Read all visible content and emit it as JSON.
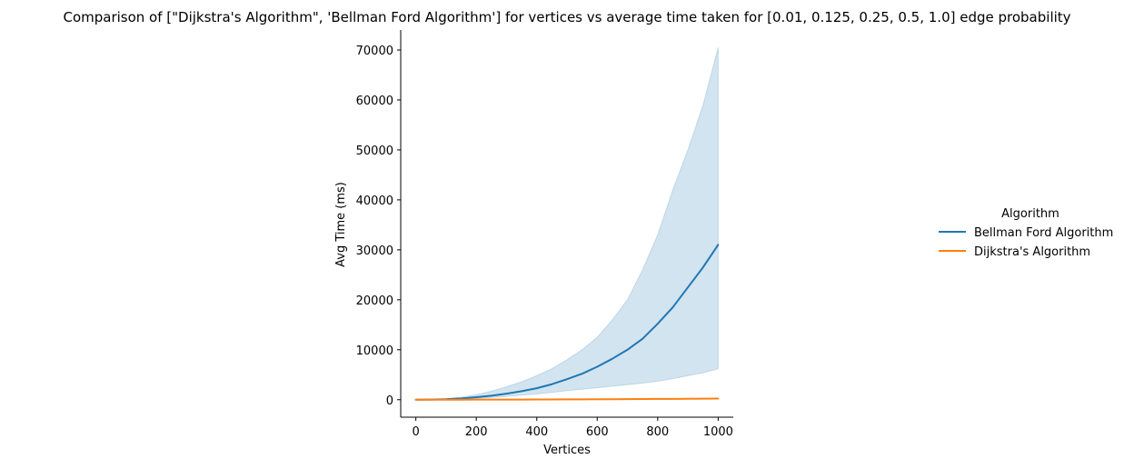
{
  "chart_data": {
    "type": "line",
    "title": "Comparison of [\"Dijkstra's Algorithm\", 'Bellman Ford Algorithm'] for vertices vs average time taken for [0.01, 0.125, 0.25, 0.5, 1.0] edge probability",
    "xlabel": "Vertices",
    "ylabel": "Avg Time (ms)",
    "xlim": [
      -50,
      1050
    ],
    "ylim": [
      -3500,
      74000
    ],
    "xticks": [
      0,
      200,
      400,
      600,
      800,
      1000
    ],
    "xtick_labels": [
      "0",
      "200",
      "400",
      "600",
      "800",
      "1000"
    ],
    "yticks": [
      0,
      10000,
      20000,
      30000,
      40000,
      50000,
      60000,
      70000
    ],
    "ytick_labels": [
      "0",
      "10000",
      "20000",
      "30000",
      "40000",
      "50000",
      "60000",
      "70000"
    ],
    "grid": false,
    "legend": {
      "title": "Algorithm",
      "placement": "right, outside plot",
      "entries": [
        "Bellman Ford Algorithm",
        "Dijkstra's Algorithm"
      ]
    },
    "series": [
      {
        "name": "Bellman Ford Algorithm",
        "color": "#1f77b4",
        "band_color": "#1f77b4",
        "x": [
          0,
          50,
          100,
          150,
          200,
          250,
          300,
          350,
          400,
          450,
          500,
          550,
          600,
          650,
          700,
          750,
          800,
          850,
          900,
          950,
          1000
        ],
        "y": [
          0,
          30,
          100,
          250,
          500,
          800,
          1200,
          1700,
          2300,
          3100,
          4100,
          5200,
          6600,
          8200,
          10000,
          12200,
          15200,
          18500,
          22500,
          26500,
          31000
        ],
        "band_lower": [
          0,
          20,
          60,
          150,
          280,
          450,
          650,
          900,
          1150,
          1450,
          1800,
          2100,
          2400,
          2700,
          3000,
          3300,
          3700,
          4200,
          4800,
          5400,
          6200
        ],
        "band_upper": [
          0,
          60,
          200,
          500,
          1000,
          1700,
          2600,
          3600,
          4800,
          6200,
          8000,
          10000,
          12500,
          16000,
          20000,
          26000,
          33000,
          42000,
          50000,
          59000,
          70500
        ]
      },
      {
        "name": "Dijkstra's Algorithm",
        "color": "#ff7f0e",
        "x": [
          0,
          50,
          100,
          150,
          200,
          250,
          300,
          350,
          400,
          450,
          500,
          550,
          600,
          650,
          700,
          750,
          800,
          850,
          900,
          950,
          1000
        ],
        "y": [
          0,
          2,
          5,
          9,
          14,
          20,
          27,
          35,
          44,
          54,
          65,
          77,
          90,
          104,
          119,
          135,
          152,
          170,
          189,
          209,
          230
        ]
      }
    ]
  }
}
